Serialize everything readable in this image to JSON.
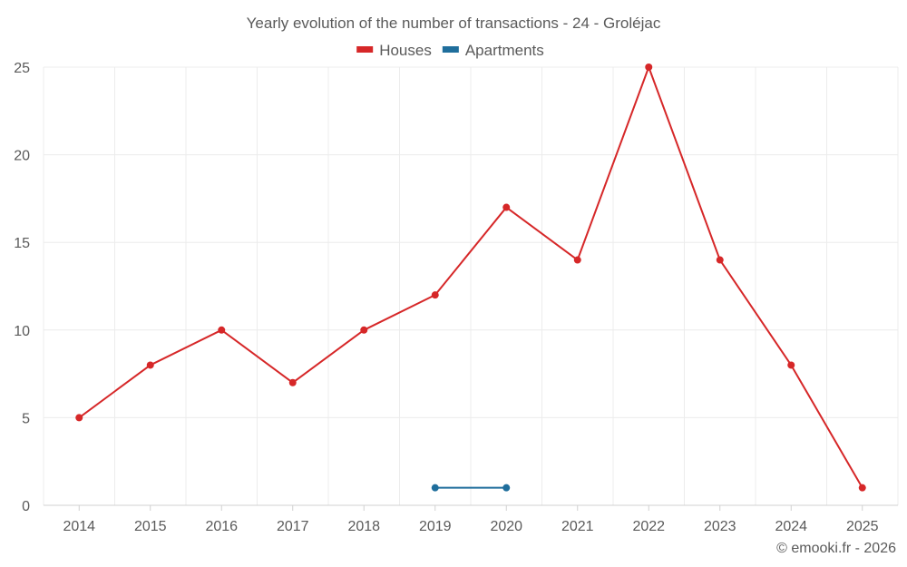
{
  "chart_data": {
    "type": "line",
    "title": "Yearly evolution of the number of transactions - 24 - Groléjac",
    "categories": [
      "2014",
      "2015",
      "2016",
      "2017",
      "2018",
      "2019",
      "2020",
      "2021",
      "2022",
      "2023",
      "2024",
      "2025"
    ],
    "ylim": [
      0,
      25
    ],
    "yticks": [
      0,
      5,
      10,
      15,
      20,
      25
    ],
    "grid": true,
    "legend_position": "top-center",
    "series": [
      {
        "name": "Houses",
        "color": "#d62728",
        "values": [
          5,
          8,
          10,
          7,
          10,
          12,
          17,
          14,
          25,
          14,
          8,
          1
        ]
      },
      {
        "name": "Apartments",
        "color": "#1f6e9c",
        "values": [
          null,
          null,
          null,
          null,
          null,
          1,
          1,
          null,
          null,
          null,
          null,
          null
        ]
      }
    ],
    "xlabel": "",
    "ylabel": ""
  },
  "credit": "© emooki.fr - 2026"
}
